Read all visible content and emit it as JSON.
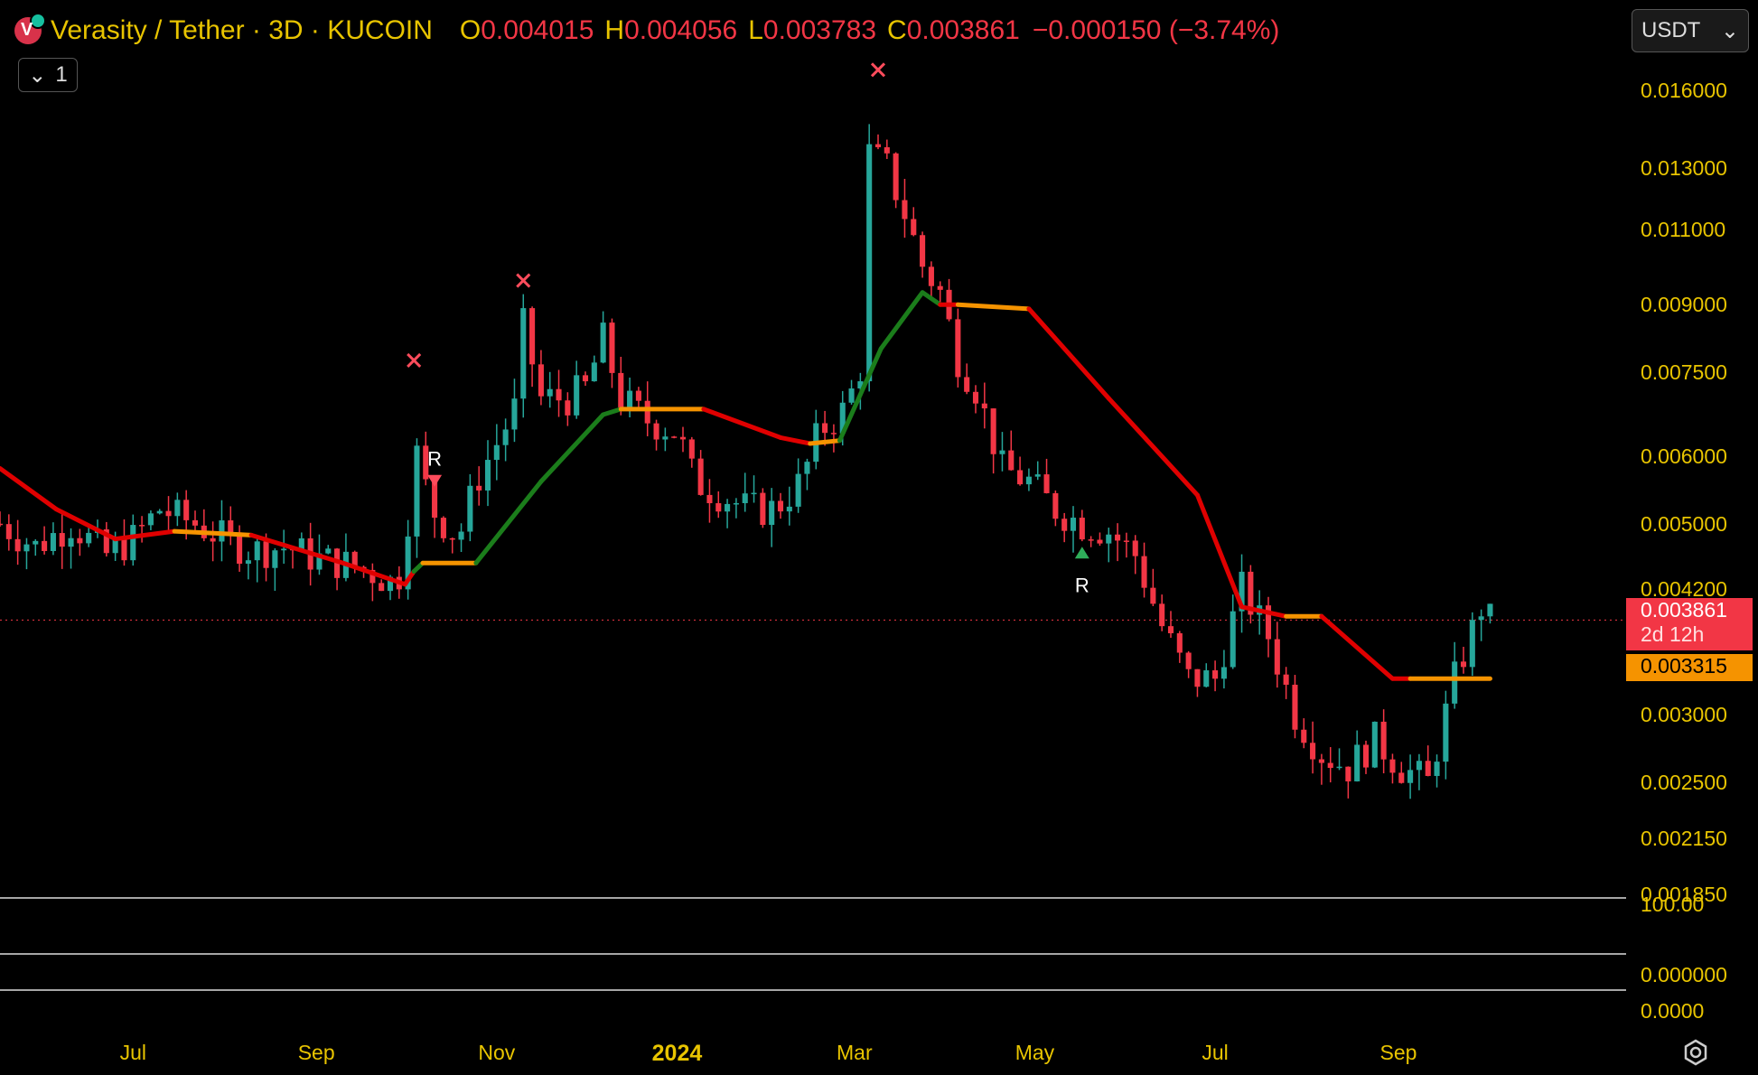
{
  "header": {
    "symbol": "Verasity / Tether · 3D · KUCOIN",
    "o_label": "O",
    "o_value": "0.004015",
    "h_label": "H",
    "h_value": "0.004056",
    "l_label": "L",
    "l_value": "0.003783",
    "c_label": "C",
    "c_value": "0.003861",
    "change": "−0.000150 (−3.74%)",
    "collapse_count": "1",
    "currency": "USDT"
  },
  "colors": {
    "up": "#26a69a",
    "down": "#f23645",
    "text": "#e8c400",
    "trend_up": "#1b7d1b",
    "trend_down": "#e00000",
    "trend_flat": "#f59300"
  },
  "chart_data": {
    "type": "candlestick",
    "title": "Verasity / Tether · 3D · KUCOIN",
    "y_scale": "log",
    "ylim": [
      0.00185,
      0.0172
    ],
    "y_ticks": [
      "0.016000",
      "0.013000",
      "0.011000",
      "0.009000",
      "0.007500",
      "0.006000",
      "0.005000",
      "0.004200",
      "0.003000",
      "0.002500",
      "0.002150",
      "0.001850"
    ],
    "x_ticks": [
      {
        "label": "Jul",
        "date": "2023-07-01"
      },
      {
        "label": "Sep",
        "date": "2023-09-01"
      },
      {
        "label": "Nov",
        "date": "2023-11-01"
      },
      {
        "label": "2024",
        "date": "2024-01-01",
        "bold": true
      },
      {
        "label": "Mar",
        "date": "2024-03-01"
      },
      {
        "label": "May",
        "date": "2024-05-01"
      },
      {
        "label": "Jul",
        "date": "2024-07-01"
      },
      {
        "label": "Sep",
        "date": "2024-09-01"
      }
    ],
    "x_range": [
      "2023-05-17",
      "2024-11-17"
    ],
    "candle_interval_days": 3,
    "closes": [
      [
        "2023-05-17",
        0.005
      ],
      [
        "2023-05-29",
        0.0047
      ],
      [
        "2023-06-10",
        0.005
      ],
      [
        "2023-06-22",
        0.0046
      ],
      [
        "2023-07-01",
        0.0048
      ],
      [
        "2023-07-10",
        0.0052
      ],
      [
        "2023-07-22",
        0.005
      ],
      [
        "2023-08-01",
        0.0048
      ],
      [
        "2023-08-10",
        0.00465
      ],
      [
        "2023-08-22",
        0.0047
      ],
      [
        "2023-09-01",
        0.00455
      ],
      [
        "2023-09-10",
        0.0045
      ],
      [
        "2023-09-19",
        0.0044
      ],
      [
        "2023-09-28",
        0.00425
      ],
      [
        "2023-10-01",
        0.0046
      ],
      [
        "2023-10-04",
        0.0062
      ],
      [
        "2023-10-10",
        0.0052
      ],
      [
        "2023-10-19",
        0.0048
      ],
      [
        "2023-10-25",
        0.0056
      ],
      [
        "2023-11-01",
        0.0062
      ],
      [
        "2023-11-07",
        0.0068
      ],
      [
        "2023-11-10",
        0.0085
      ],
      [
        "2023-11-16",
        0.007
      ],
      [
        "2023-11-25",
        0.007
      ],
      [
        "2023-12-01",
        0.0072
      ],
      [
        "2023-12-07",
        0.0082
      ],
      [
        "2023-12-13",
        0.007
      ],
      [
        "2023-12-22",
        0.0066
      ],
      [
        "2024-01-01",
        0.0064
      ],
      [
        "2024-01-07",
        0.0056
      ],
      [
        "2024-01-16",
        0.0054
      ],
      [
        "2024-01-25",
        0.0052
      ],
      [
        "2024-02-03",
        0.0052
      ],
      [
        "2024-02-12",
        0.0056
      ],
      [
        "2024-02-18",
        0.0064
      ],
      [
        "2024-02-27",
        0.0068
      ],
      [
        "2024-03-03",
        0.0076
      ],
      [
        "2024-03-06",
        0.0135
      ],
      [
        "2024-03-12",
        0.013
      ],
      [
        "2024-03-18",
        0.0115
      ],
      [
        "2024-03-24",
        0.01
      ],
      [
        "2024-03-30",
        0.0093
      ],
      [
        "2024-04-05",
        0.0078
      ],
      [
        "2024-04-11",
        0.0072
      ],
      [
        "2024-04-20",
        0.0058
      ],
      [
        "2024-04-29",
        0.0056
      ],
      [
        "2024-05-08",
        0.0052
      ],
      [
        "2024-05-17",
        0.005
      ],
      [
        "2024-05-26",
        0.0049
      ],
      [
        "2024-06-04",
        0.0046
      ],
      [
        "2024-06-13",
        0.0038
      ],
      [
        "2024-06-22",
        0.0033
      ],
      [
        "2024-07-01",
        0.0033
      ],
      [
        "2024-07-10",
        0.0042
      ],
      [
        "2024-07-19",
        0.0037
      ],
      [
        "2024-07-28",
        0.003
      ],
      [
        "2024-08-06",
        0.0027
      ],
      [
        "2024-08-15",
        0.0026
      ],
      [
        "2024-08-24",
        0.0028
      ],
      [
        "2024-09-02",
        0.0026
      ],
      [
        "2024-09-11",
        0.0025
      ],
      [
        "2024-09-20",
        0.0033
      ],
      [
        "2024-09-29",
        0.004
      ],
      [
        "2024-10-02",
        0.00386
      ]
    ],
    "trend_line": [
      [
        "2023-05-17",
        0.0058,
        "down"
      ],
      [
        "2023-06-05",
        0.0052,
        "down"
      ],
      [
        "2023-06-25",
        0.0048,
        "down"
      ],
      [
        "2023-07-15",
        0.0049,
        "flat"
      ],
      [
        "2023-08-10",
        0.00485,
        "down"
      ],
      [
        "2023-09-10",
        0.0045,
        "down"
      ],
      [
        "2023-10-01",
        0.00425,
        "down"
      ],
      [
        "2023-10-04",
        0.0044,
        "up"
      ],
      [
        "2023-10-07",
        0.0045,
        "flat"
      ],
      [
        "2023-10-25",
        0.0045,
        "up"
      ],
      [
        "2023-11-16",
        0.0056,
        "up"
      ],
      [
        "2023-12-07",
        0.0067,
        "up"
      ],
      [
        "2023-12-13",
        0.0068,
        "flat"
      ],
      [
        "2024-01-10",
        0.0068,
        "down"
      ],
      [
        "2024-02-05",
        0.0063,
        "down"
      ],
      [
        "2024-02-15",
        0.0062,
        "flat"
      ],
      [
        "2024-02-25",
        0.00625,
        "up"
      ],
      [
        "2024-03-10",
        0.008,
        "up"
      ],
      [
        "2024-03-24",
        0.0093,
        "up"
      ],
      [
        "2024-03-30",
        0.009,
        "down"
      ],
      [
        "2024-04-05",
        0.009,
        "flat"
      ],
      [
        "2024-04-29",
        0.0089,
        "down"
      ],
      [
        "2024-05-26",
        0.007,
        "down"
      ],
      [
        "2024-06-25",
        0.0054,
        "down"
      ],
      [
        "2024-07-10",
        0.004,
        "down"
      ],
      [
        "2024-07-25",
        0.0039,
        "flat"
      ],
      [
        "2024-08-06",
        0.0039,
        "down"
      ],
      [
        "2024-08-30",
        0.0033,
        "down"
      ],
      [
        "2024-09-05",
        0.0033,
        "flat"
      ],
      [
        "2024-10-02",
        0.0033,
        "flat"
      ]
    ],
    "markers": [
      {
        "type": "x",
        "date": "2023-10-04",
        "value": 0.00775
      },
      {
        "type": "x",
        "date": "2023-11-10",
        "value": 0.0096
      },
      {
        "type": "x",
        "date": "2024-03-09",
        "value": 0.0169
      },
      {
        "type": "sell",
        "date": "2023-10-11",
        "value": 0.0057,
        "label": "R"
      },
      {
        "type": "buy",
        "date": "2024-05-17",
        "value": 0.0047,
        "label": "R"
      }
    ],
    "last_price": "0.003861",
    "countdown": "2d 12h",
    "trend_price": "0.003315",
    "sub_pane_labels": [
      "100.00",
      "0.000000",
      "0.0000"
    ]
  }
}
